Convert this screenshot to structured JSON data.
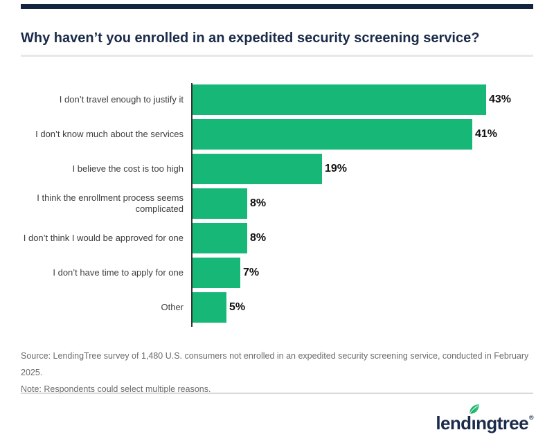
{
  "header": {
    "title": "Why haven’t you enrolled in an expedited security screening service?"
  },
  "chart_data": {
    "type": "bar",
    "orientation": "horizontal",
    "title": "Why haven’t you enrolled in an expedited security screening service?",
    "categories": [
      "I don’t travel enough to justify it",
      "I don’t know much about the services",
      "I believe the cost is too high",
      "I think the enrollment process seems complicated",
      "I don’t think I would be approved for one",
      "I don’t have time to apply for one",
      "Other"
    ],
    "values": [
      43,
      41,
      19,
      8,
      8,
      7,
      5
    ],
    "value_labels": [
      "43%",
      "41%",
      "19%",
      "8%",
      "8%",
      "7%",
      "5%"
    ],
    "unit": "%",
    "bar_color": "#17b877",
    "axis_color": "#333333",
    "xlim": [
      0,
      50
    ],
    "grid": false,
    "legend": "none",
    "xlabel": "",
    "ylabel": ""
  },
  "footer": {
    "source": "Source: LendingTree survey of 1,480 U.S. consumers not enrolled in an expedited security screening service, conducted in February 2025.",
    "note": "Note: Respondents could select multiple reasons."
  },
  "logo": {
    "text": "lendingtree",
    "registered": "®"
  },
  "colors": {
    "navy": "#1b2b4a",
    "top_bar": "#13243f",
    "green": "#17b877",
    "divider": "#e8e8e8",
    "divider_bottom": "#d8d8d8",
    "label": "#3d3d3d",
    "value": "#111111",
    "source": "#6b6b6b"
  }
}
